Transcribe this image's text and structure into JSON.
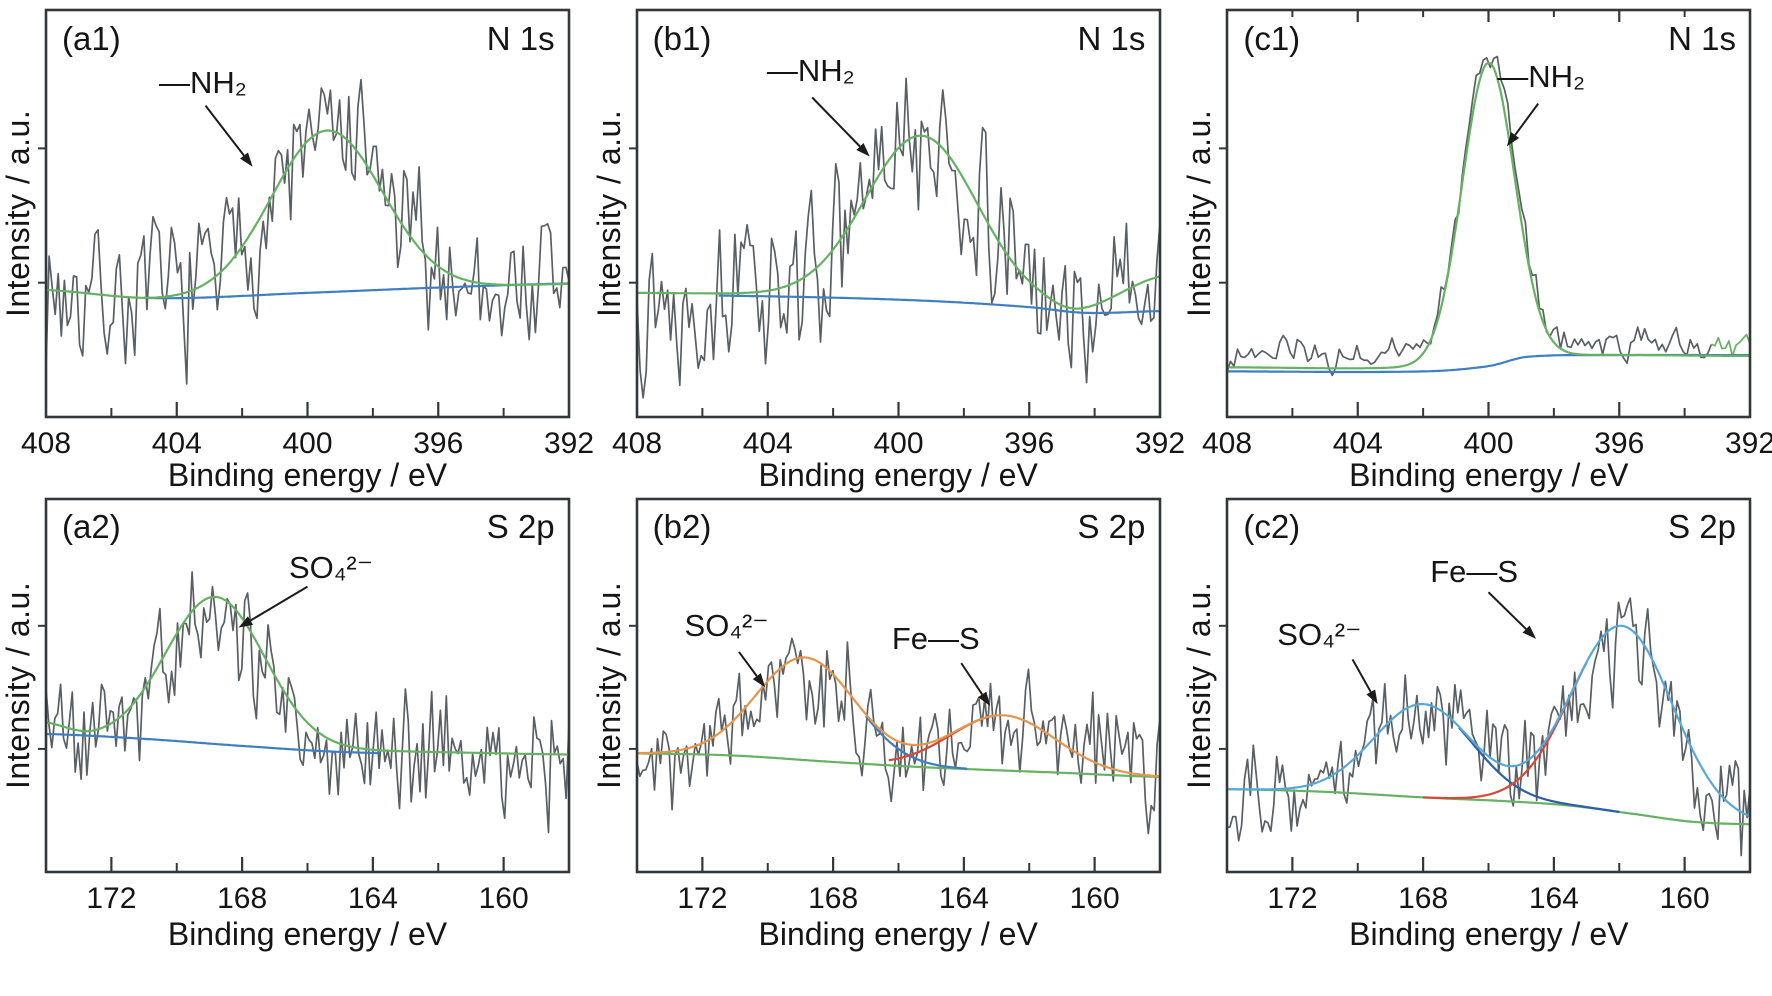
{
  "figure": {
    "x_axis_title": "Binding energy / eV",
    "y_axis_title": "Intensity / a.u."
  },
  "colors": {
    "noise": "#5a5f63",
    "green": "#66b163",
    "blue": "#3f7fc1",
    "orange": "#e6954e",
    "lightblue": "#58a8d7",
    "red": "#d6493a",
    "darkblue": "#2d5fa8",
    "frame": "#33373a",
    "arrow": "#1c1c1c"
  },
  "chart_data": {
    "type": "line",
    "description": "XPS spectra: raw noisy signal, fitted peak envelopes and baselines",
    "panels": [
      {
        "id": "a1",
        "corner_label": "(a1)",
        "region_label": "N 1s",
        "xlabel": "Binding energy / eV",
        "ylabel": "Intensity / a.u.",
        "x_min": 408,
        "x_max": 392,
        "x_major_ticks": [
          404,
          400,
          396
        ],
        "x_minor_ticks": [
          406,
          402,
          398,
          394
        ],
        "x_tick_labels": [
          408,
          404,
          400,
          396,
          392
        ],
        "y_ticks": [
          0.33,
          0.66
        ],
        "noise": {
          "seed": 7,
          "n": 172,
          "amp": 0.15,
          "pscale": 0.95,
          "offset": 0.0
        },
        "curves": [
          {
            "name": "baseline",
            "color": "blue",
            "base": [
              [
                408,
                0.31
              ],
              [
                404.5,
                0.292
              ],
              [
                400,
                0.305
              ],
              [
                396,
                0.318
              ],
              [
                392,
                0.328
              ]
            ],
            "peaks": [],
            "range": [
              405,
              392
            ]
          },
          {
            "name": "fit-NH2",
            "color": "green",
            "envelope": true,
            "base": [
              [
                408,
                0.312
              ],
              [
                404.6,
                0.29
              ],
              [
                400,
                0.302
              ],
              [
                396,
                0.316
              ],
              [
                392,
                0.327
              ]
            ],
            "peaks": [
              {
                "c": 399.4,
                "s": 1.7,
                "a": 0.4
              }
            ],
            "range": [
              408,
              392
            ]
          }
        ],
        "annotations": [
          {
            "text": "—NH₂",
            "tx": 0.3,
            "ty": 0.18,
            "ax": 0.305,
            "ay": 0.235,
            "bx": 0.395,
            "by": 0.385
          }
        ]
      },
      {
        "id": "b1",
        "corner_label": "(b1)",
        "region_label": "N 1s",
        "xlabel": "Binding energy / eV",
        "ylabel": "Intensity / a.u.",
        "x_min": 408,
        "x_max": 392,
        "x_major_ticks": [
          404,
          400,
          396
        ],
        "x_minor_ticks": [
          406,
          402,
          398,
          394
        ],
        "x_tick_labels": [
          408,
          404,
          400,
          396,
          392
        ],
        "y_ticks": [
          0.33,
          0.66
        ],
        "noise": {
          "seed": 13,
          "n": 172,
          "amp": 0.15,
          "pscale": 0.95,
          "offset": 0.0
        },
        "curves": [
          {
            "name": "baseline",
            "color": "blue",
            "base": [
              [
                408,
                0.3
              ],
              [
                403,
                0.295
              ],
              [
                399,
                0.285
              ],
              [
                396,
                0.27
              ],
              [
                394.3,
                0.256
              ],
              [
                392,
                0.26
              ]
            ],
            "peaks": [],
            "range": [
              405.5,
              392
            ]
          },
          {
            "name": "fit-NH2",
            "color": "green",
            "envelope": true,
            "base": [
              [
                408,
                0.305
              ],
              [
                403,
                0.3
              ],
              [
                399,
                0.29
              ],
              [
                396,
                0.273
              ],
              [
                394.5,
                0.259
              ],
              [
                392,
                0.345
              ]
            ],
            "peaks": [
              {
                "c": 399.3,
                "s": 1.7,
                "a": 0.4
              }
            ],
            "range": [
              408,
              392
            ]
          }
        ],
        "annotations": [
          {
            "text": "—NH₂",
            "tx": 0.333,
            "ty": 0.15,
            "ax": 0.335,
            "ay": 0.215,
            "bx": 0.445,
            "by": 0.36
          }
        ]
      },
      {
        "id": "c1",
        "corner_label": "(c1)",
        "region_label": "N 1s",
        "xlabel": "Binding energy / eV",
        "ylabel": "Intensity / a.u.",
        "x_min": 408,
        "x_max": 392,
        "x_major_ticks": [
          404,
          400,
          396
        ],
        "x_minor_ticks": [
          406,
          402,
          398,
          394
        ],
        "x_tick_labels": [
          408,
          404,
          400,
          396,
          392
        ],
        "y_ticks": [
          0.33,
          0.66
        ],
        "top_ticks": true,
        "noise": {
          "seed": 23,
          "n": 150,
          "amp": 0.035,
          "pscale": 1.0,
          "offset": 0.03,
          "tail_frac": 0.93,
          "tail_color": "green"
        },
        "curves": [
          {
            "name": "baseline",
            "color": "blue",
            "base": [
              [
                408,
                0.112
              ],
              [
                402,
                0.112
              ],
              [
                400,
                0.125
              ],
              [
                398.8,
                0.148
              ],
              [
                396,
                0.152
              ],
              [
                392,
                0.152
              ]
            ],
            "peaks": [],
            "range": [
              408,
              392
            ]
          },
          {
            "name": "fit-NH2",
            "color": "green",
            "envelope": true,
            "base": [
              [
                408,
                0.122
              ],
              [
                402.5,
                0.122
              ],
              [
                398.5,
                0.15
              ],
              [
                392,
                0.15
              ]
            ],
            "peaks": [
              {
                "c": 400.0,
                "s": 0.8,
                "a": 0.73
              }
            ],
            "range": [
              408,
              392
            ]
          }
        ],
        "annotations": [
          {
            "text": "—NH₂",
            "tx": 0.6,
            "ty": 0.165,
            "ax": 0.595,
            "ay": 0.23,
            "bx": 0.535,
            "by": 0.335
          }
        ]
      },
      {
        "id": "a2",
        "corner_label": "(a2)",
        "region_label": "S 2p",
        "xlabel": "Binding energy / eV",
        "ylabel": "Intensity / a.u.",
        "x_min": 174,
        "x_max": 158,
        "x_major_ticks": [
          172,
          168,
          164,
          160
        ],
        "x_minor_ticks": [
          170,
          166,
          162
        ],
        "x_tick_labels": [
          172,
          168,
          164,
          160
        ],
        "y_ticks": [
          0.33,
          0.66
        ],
        "noise": {
          "seed": 5,
          "n": 180,
          "amp": 0.14,
          "pscale": 0.92,
          "offset": 0.0
        },
        "curves": [
          {
            "name": "baseline",
            "color": "blue",
            "base": [
              [
                174,
                0.37
              ],
              [
                171,
                0.357
              ],
              [
                168,
                0.338
              ],
              [
                165,
                0.322
              ],
              [
                160,
                0.312
              ],
              [
                158,
                0.31
              ]
            ],
            "peaks": [],
            "range": [
              174,
              163.8
            ]
          },
          {
            "name": "fit-SO4",
            "color": "green",
            "envelope": true,
            "base": [
              [
                174,
                0.4
              ],
              [
                172.6,
                0.363
              ],
              [
                170,
                0.356
              ],
              [
                168,
                0.342
              ],
              [
                165,
                0.328
              ],
              [
                160,
                0.318
              ],
              [
                158,
                0.315
              ]
            ],
            "peaks": [
              {
                "c": 168.8,
                "s": 1.5,
                "a": 0.39
              }
            ],
            "range": [
              174,
              158
            ]
          }
        ],
        "annotations": [
          {
            "text": "SO₄²⁻",
            "tx": 0.545,
            "ty": 0.185,
            "ax": 0.5,
            "ay": 0.235,
            "bx": 0.368,
            "by": 0.345
          }
        ]
      },
      {
        "id": "b2",
        "corner_label": "(b2)",
        "region_label": "S 2p",
        "xlabel": "Binding energy / eV",
        "ylabel": "Intensity / a.u.",
        "x_min": 174,
        "x_max": 158,
        "x_major_ticks": [
          172,
          168,
          164,
          160
        ],
        "x_minor_ticks": [
          170,
          166,
          162
        ],
        "x_tick_labels": [
          172,
          168,
          164,
          160
        ],
        "y_ticks": [
          0.33,
          0.66
        ],
        "noise": {
          "seed": 17,
          "n": 180,
          "amp": 0.13,
          "pscale": 0.93,
          "offset": 0.0
        },
        "curves": [
          {
            "name": "baseline",
            "color": "green",
            "base": [
              [
                174,
                0.318
              ],
              [
                171,
                0.312
              ],
              [
                168,
                0.295
              ],
              [
                165,
                0.28
              ],
              [
                161,
                0.266
              ],
              [
                158,
                0.255
              ]
            ],
            "peaks": [],
            "range": [
              174,
              158
            ]
          },
          {
            "name": "comp-SO4",
            "color": "blue",
            "base": [
              [
                174,
                0.318
              ],
              [
                171,
                0.312
              ],
              [
                168,
                0.295
              ],
              [
                165,
                0.28
              ],
              [
                161,
                0.266
              ],
              [
                158,
                0.255
              ]
            ],
            "peaks": [
              {
                "c": 168.85,
                "s": 1.5,
                "a": 0.275
              }
            ],
            "range": [
              167.0,
              163.9
            ]
          },
          {
            "name": "comp-FeS",
            "color": "red",
            "base": [
              [
                174,
                0.318
              ],
              [
                171,
                0.312
              ],
              [
                168,
                0.295
              ],
              [
                165,
                0.28
              ],
              [
                161,
                0.266
              ],
              [
                158,
                0.255
              ]
            ],
            "peaks": [
              {
                "c": 162.8,
                "s": 1.6,
                "a": 0.148
              }
            ],
            "range": [
              166.3,
              163.1
            ]
          },
          {
            "name": "envelope",
            "color": "orange",
            "envelope": true,
            "base": [
              [
                174,
                0.318
              ],
              [
                171,
                0.312
              ],
              [
                168,
                0.295
              ],
              [
                165,
                0.28
              ],
              [
                161,
                0.266
              ],
              [
                158,
                0.255
              ]
            ],
            "peaks": [
              {
                "c": 168.85,
                "s": 1.5,
                "a": 0.275
              },
              {
                "c": 162.8,
                "s": 1.6,
                "a": 0.148
              }
            ],
            "range": [
              174,
              158
            ]
          }
        ],
        "annotations": [
          {
            "text": "SO₄²⁻",
            "tx": 0.172,
            "ty": 0.34,
            "ax": 0.195,
            "ay": 0.41,
            "bx": 0.245,
            "by": 0.505
          },
          {
            "text": "Fe—S",
            "tx": 0.572,
            "ty": 0.375,
            "ax": 0.62,
            "ay": 0.44,
            "bx": 0.675,
            "by": 0.555
          }
        ]
      },
      {
        "id": "c2",
        "corner_label": "(c2)",
        "region_label": "S 2p",
        "xlabel": "Binding energy / eV",
        "ylabel": "Intensity / a.u.",
        "x_min": 174,
        "x_max": 158,
        "x_major_ticks": [
          172,
          168,
          164,
          160
        ],
        "x_minor_ticks": [
          170,
          166,
          162
        ],
        "x_tick_labels": [
          172,
          168,
          164,
          160
        ],
        "y_ticks": [
          0.33,
          0.66
        ],
        "noise": {
          "seed": 29,
          "n": 180,
          "amp": 0.115,
          "pscale": 0.94,
          "offset": 0.0
        },
        "curves": [
          {
            "name": "baseline",
            "color": "green",
            "base": [
              [
                174,
                0.222
              ],
              [
                171,
                0.215
              ],
              [
                168,
                0.2
              ],
              [
                165.5,
                0.19
              ],
              [
                163.5,
                0.178
              ],
              [
                161.5,
                0.155
              ],
              [
                159.8,
                0.135
              ],
              [
                158,
                0.128
              ]
            ],
            "peaks": [],
            "range": [
              174,
              158
            ]
          },
          {
            "name": "comp-SO4",
            "color": "darkblue",
            "base": [
              [
                174,
                0.222
              ],
              [
                171,
                0.215
              ],
              [
                168,
                0.2
              ],
              [
                165.5,
                0.19
              ],
              [
                163.5,
                0.178
              ],
              [
                161.5,
                0.155
              ],
              [
                159.8,
                0.135
              ],
              [
                158,
                0.128
              ]
            ],
            "peaks": [
              {
                "c": 168.0,
                "s": 1.5,
                "a": 0.25
              }
            ],
            "range": [
              166.9,
              162.0
            ]
          },
          {
            "name": "comp-FeS",
            "color": "red",
            "base": [
              [
                174,
                0.222
              ],
              [
                171,
                0.215
              ],
              [
                168,
                0.2
              ],
              [
                165.5,
                0.19
              ],
              [
                163.5,
                0.178
              ],
              [
                161.5,
                0.155
              ],
              [
                159.8,
                0.135
              ],
              [
                158,
                0.128
              ]
            ],
            "peaks": [
              {
                "c": 161.9,
                "s": 1.55,
                "a": 0.5
              }
            ],
            "range": [
              168.0,
              163.0
            ]
          },
          {
            "name": "envelope",
            "color": "lightblue",
            "envelope": true,
            "base": [
              [
                174,
                0.222
              ],
              [
                171,
                0.215
              ],
              [
                168,
                0.2
              ],
              [
                165.5,
                0.19
              ],
              [
                163.5,
                0.178
              ],
              [
                161.5,
                0.155
              ],
              [
                159.8,
                0.135
              ],
              [
                158,
                0.128
              ]
            ],
            "peaks": [
              {
                "c": 168.0,
                "s": 1.5,
                "a": 0.25
              },
              {
                "c": 161.9,
                "s": 1.55,
                "a": 0.5
              }
            ],
            "range": [
              174,
              158
            ]
          }
        ],
        "annotations": [
          {
            "text": "SO₄²⁻",
            "tx": 0.176,
            "ty": 0.365,
            "ax": 0.24,
            "ay": 0.43,
            "bx": 0.288,
            "by": 0.55
          },
          {
            "text": "Fe—S",
            "tx": 0.472,
            "ty": 0.195,
            "ax": 0.5,
            "ay": 0.25,
            "bx": 0.591,
            "by": 0.375
          }
        ]
      }
    ]
  }
}
